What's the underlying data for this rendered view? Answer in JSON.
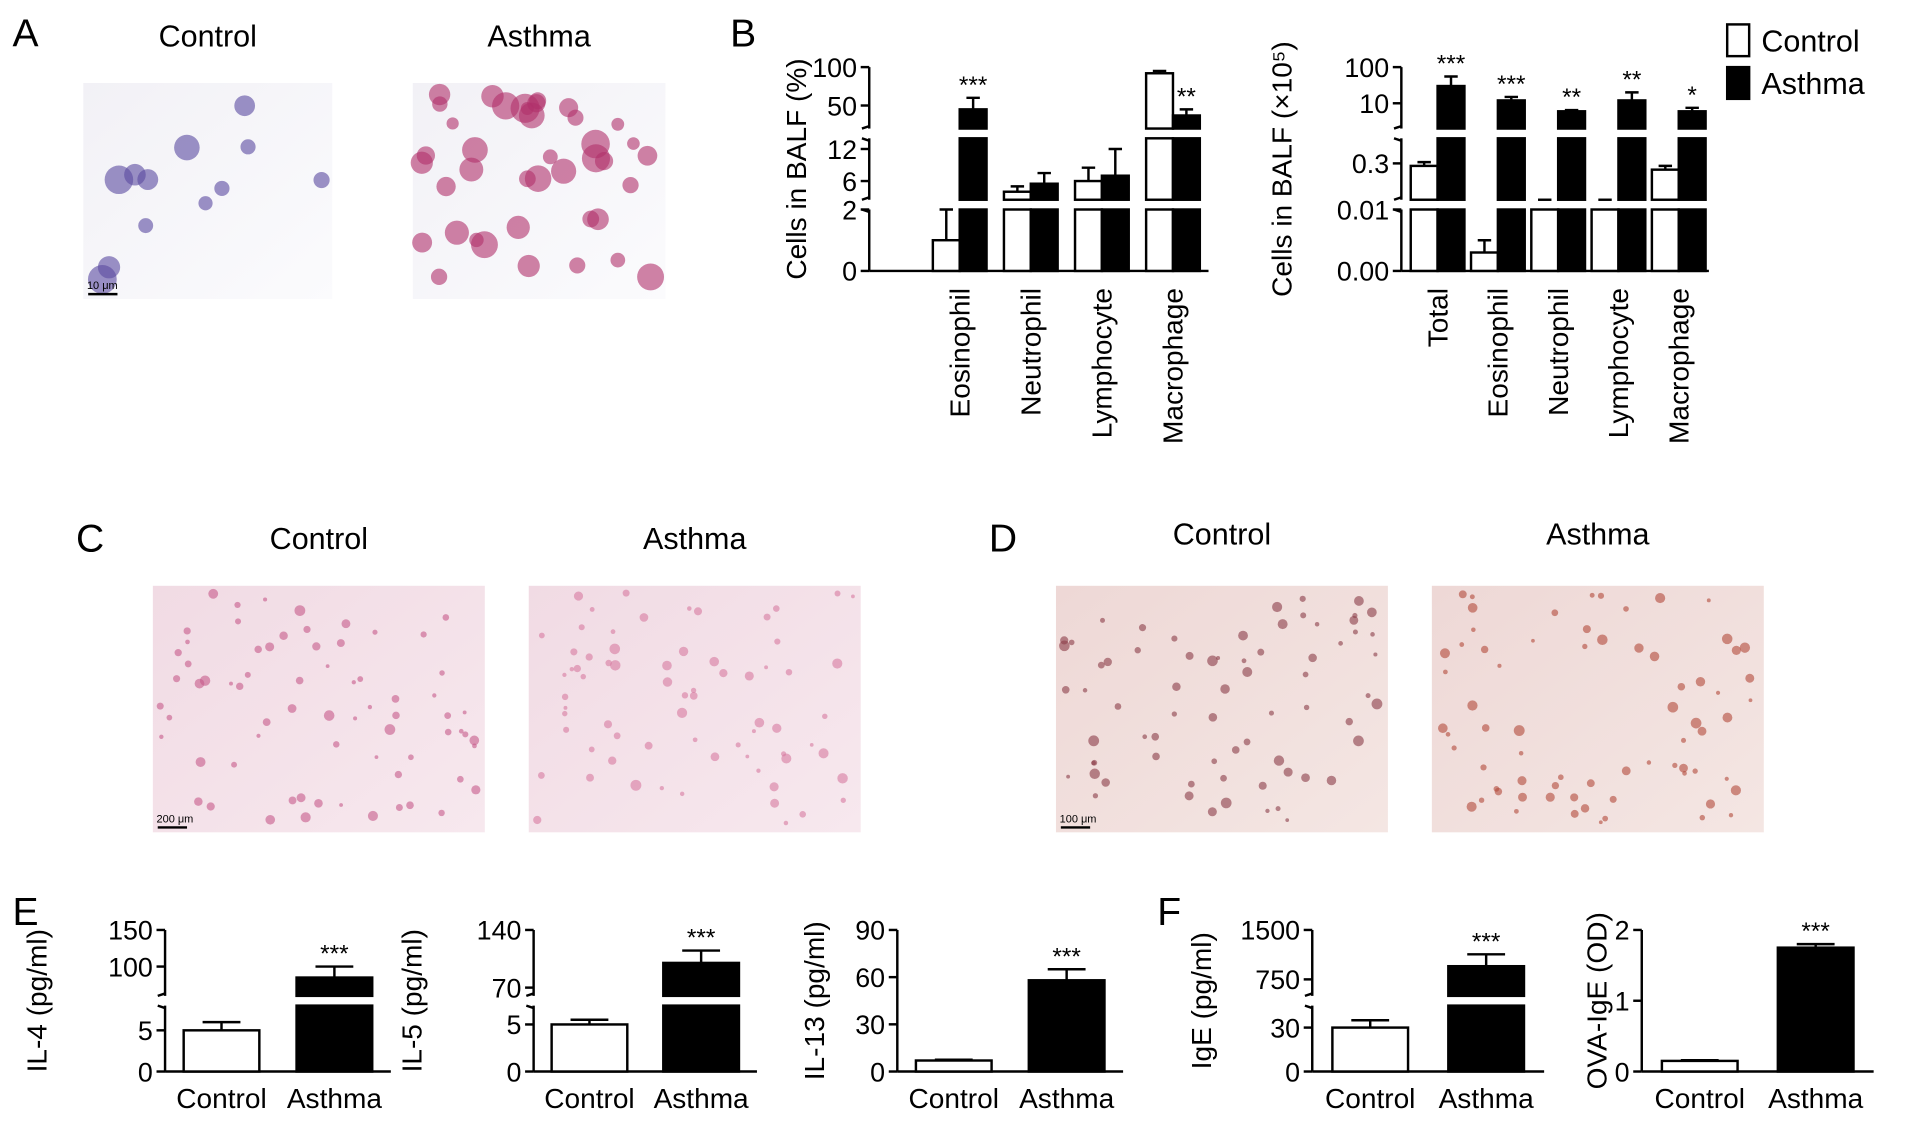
{
  "panel_labels": [
    "A",
    "B",
    "C",
    "D",
    "E",
    "F"
  ],
  "micrographs": [
    {
      "titles": [
        "Control",
        "Asthma"
      ],
      "scale_bar": "10 μm"
    },
    {
      "titles": [
        "Control",
        "Asthma"
      ],
      "scale_bar": "200 μm"
    },
    {
      "titles": [
        "Control",
        "Asthma"
      ],
      "scale_bar": "100 μm"
    }
  ],
  "chart_data": [
    {
      "type": "bar",
      "ylabel": "Cells in BALF (%)",
      "categories": [
        "Eosinophil",
        "Neutrophil",
        "Lymphocyte",
        "Macrophage"
      ],
      "series": [
        {
          "color": "#ffffff",
          "values": [
            1,
            4,
            6,
            92
          ],
          "errors": [
            1,
            1,
            2.5,
            3
          ]
        },
        {
          "color": "#000000",
          "values": [
            45,
            5.5,
            7,
            37
          ],
          "errors": [
            15,
            2,
            5,
            8
          ],
          "annotations": [
            "***",
            null,
            null,
            "**"
          ]
        }
      ],
      "ybreaks": [
        {
          "ylim": [
            0,
            2
          ],
          "yticks": [
            0,
            2
          ]
        },
        {
          "ylim": [
            2.5,
            14
          ],
          "yticks": [
            6,
            12
          ]
        },
        {
          "ylim": [
            20,
            100
          ],
          "yticks": [
            50,
            100
          ]
        }
      ]
    },
    {
      "type": "bar",
      "ylabel": "Cells in BALF (×10⁵)",
      "categories": [
        "Total",
        "Eosinophil",
        "Neutrophil",
        "Lymphocyte",
        "Macrophage"
      ],
      "series": [
        {
          "name": "Control",
          "color": "#ffffff",
          "values": [
            0.28,
            0.003,
            0.01,
            0.01,
            0.25
          ],
          "errors": [
            0.03,
            0.002,
            0,
            0,
            0.03
          ]
        },
        {
          "name": "Asthma",
          "color": "#000000",
          "values": [
            30,
            12,
            6,
            12,
            6
          ],
          "errors": [
            25,
            3,
            0.5,
            8,
            1.5
          ],
          "annotations": [
            "***",
            "***",
            "**",
            "**",
            "*"
          ]
        }
      ],
      "ybreaks": [
        {
          "ylim": [
            0,
            0.01
          ],
          "yticks": [
            {
              "value": 0,
              "label": "0.00"
            },
            0.01
          ]
        },
        {
          "ylim": [
            0.01,
            0.5
          ],
          "yticks": [
            0.3
          ]
        },
        {
          "ylim": [
            2,
            100
          ],
          "yticks": [
            10,
            100
          ],
          "log": true
        }
      ],
      "legend": "top-right"
    },
    {
      "type": "bar",
      "ylabel": "IL-4 (pg/ml)",
      "categories": [
        "Control",
        "Asthma"
      ],
      "series": [
        {
          "colors": [
            "#ffffff",
            "#000000"
          ],
          "values": [
            5,
            85
          ],
          "errors": [
            1,
            15
          ],
          "annotations": [
            null,
            "***"
          ]
        }
      ],
      "ybreaks": [
        {
          "ylim": [
            0,
            8
          ],
          "yticks": [
            0,
            5
          ]
        },
        {
          "ylim": [
            60,
            150
          ],
          "yticks": [
            100,
            150
          ]
        }
      ]
    },
    {
      "type": "bar",
      "ylabel": "IL-5 (pg/ml)",
      "categories": [
        "Control",
        "Asthma"
      ],
      "series": [
        {
          "colors": [
            "#ffffff",
            "#000000"
          ],
          "values": [
            5,
            100
          ],
          "errors": [
            0.5,
            15
          ],
          "annotations": [
            null,
            "***"
          ]
        }
      ],
      "ybreaks": [
        {
          "ylim": [
            0,
            7
          ],
          "yticks": [
            0,
            5
          ]
        },
        {
          "ylim": [
            60,
            140
          ],
          "yticks": [
            70,
            140
          ]
        }
      ]
    },
    {
      "type": "bar",
      "ylabel": "IL-13 (pg/ml)",
      "categories": [
        "Control",
        "Asthma"
      ],
      "series": [
        {
          "colors": [
            "#ffffff",
            "#000000"
          ],
          "values": [
            7,
            58
          ],
          "errors": [
            0.5,
            7
          ],
          "annotations": [
            null,
            "***"
          ]
        }
      ],
      "ylim": [
        0,
        90
      ],
      "yticks": [
        0,
        30,
        60,
        90
      ]
    },
    {
      "type": "bar",
      "ylabel": "IgE (pg/ml)",
      "categories": [
        "Control",
        "Asthma"
      ],
      "series": [
        {
          "colors": [
            "#ffffff",
            "#000000"
          ],
          "values": [
            30,
            950
          ],
          "errors": [
            5,
            180
          ],
          "annotations": [
            null,
            "***"
          ]
        }
      ],
      "ybreaks": [
        {
          "ylim": [
            0,
            45
          ],
          "yticks": [
            0,
            30
          ]
        },
        {
          "ylim": [
            500,
            1500
          ],
          "yticks": [
            750,
            1500
          ]
        }
      ]
    },
    {
      "type": "bar",
      "ylabel": "OVA-IgE (OD)",
      "categories": [
        "Control",
        "Asthma"
      ],
      "series": [
        {
          "colors": [
            "#ffffff",
            "#000000"
          ],
          "values": [
            0.15,
            1.75
          ],
          "errors": [
            0.01,
            0.05
          ],
          "annotations": [
            null,
            "***"
          ]
        }
      ],
      "ylim": [
        0,
        2
      ],
      "yticks": [
        0,
        1,
        2
      ]
    }
  ]
}
